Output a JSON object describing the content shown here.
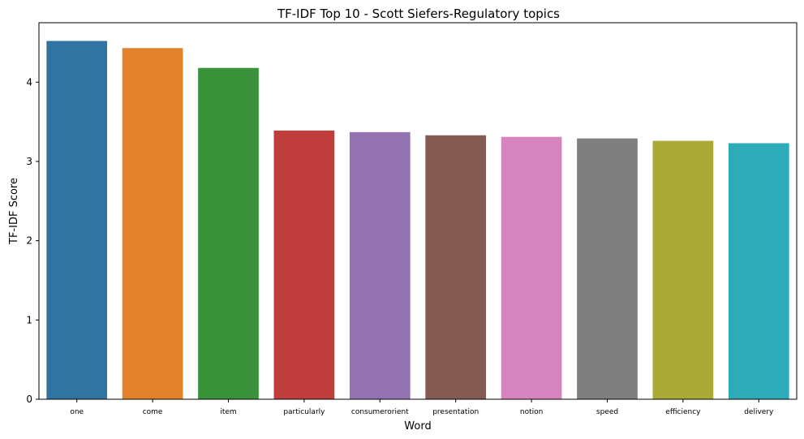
{
  "chart_data": {
    "type": "bar",
    "title": "TF-IDF Top 10 - Scott Siefers-Regulatory topics",
    "xlabel": "Word",
    "ylabel": "TF-IDF Score",
    "categories": [
      "one",
      "come",
      "item",
      "particularly",
      "consumerorient",
      "presentation",
      "notion",
      "speed",
      "efficiency",
      "delivery"
    ],
    "values": [
      4.52,
      4.43,
      4.18,
      3.39,
      3.37,
      3.33,
      3.31,
      3.29,
      3.26,
      3.23
    ],
    "colors": [
      "#3274a1",
      "#e1812c",
      "#3a923a",
      "#c03d3e",
      "#9372b2",
      "#845b53",
      "#d684bd",
      "#7f7f7f",
      "#a9aa35",
      "#2eabb8"
    ],
    "ylim": [
      0,
      4.75
    ],
    "yticks": [
      0,
      1,
      2,
      3,
      4
    ],
    "grid": false,
    "legend": "none"
  }
}
